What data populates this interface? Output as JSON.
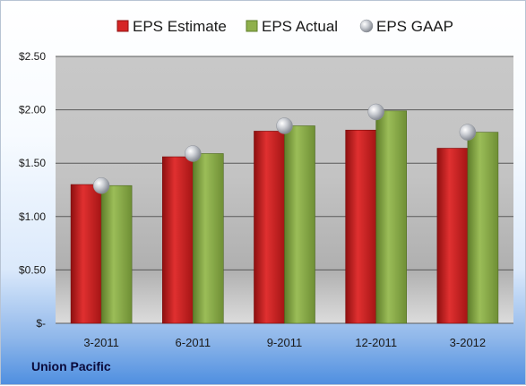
{
  "company": "Union Pacific",
  "chart_data": {
    "type": "bar",
    "categories": [
      "3-2011",
      "6-2011",
      "9-2011",
      "12-2011",
      "3-2012"
    ],
    "series": [
      {
        "name": "EPS Estimate",
        "values": [
          1.3,
          1.56,
          1.8,
          1.81,
          1.64
        ],
        "color": "#cc1f1f"
      },
      {
        "name": "EPS Actual",
        "values": [
          1.29,
          1.59,
          1.85,
          1.99,
          1.79
        ],
        "color": "#86a846"
      },
      {
        "name": "EPS GAAP",
        "values": [
          1.29,
          1.59,
          1.85,
          1.98,
          1.79
        ],
        "color": "#b9bdc4",
        "style": "marker"
      }
    ],
    "y_ticks": [
      "$-",
      "$0.50",
      "$1.00",
      "$1.50",
      "$2.00",
      "$2.50"
    ],
    "ylim": [
      0,
      2.5
    ],
    "grid": true,
    "legend": "top"
  }
}
